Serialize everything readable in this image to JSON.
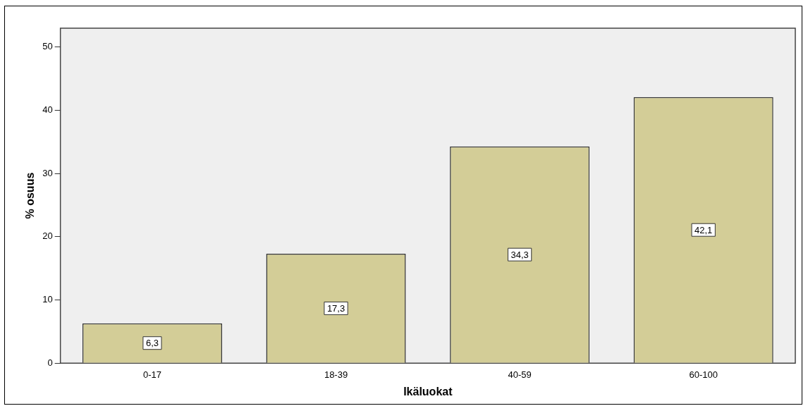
{
  "chart_data": {
    "type": "bar",
    "xlabel": "Ikäluokat",
    "ylabel": "% osuus",
    "categories": [
      "0-17",
      "18-39",
      "40-59",
      "60-100"
    ],
    "values": [
      6.3,
      17.3,
      34.3,
      42.1
    ],
    "value_labels": [
      "6,3",
      "17,3",
      "34,3",
      "42,1"
    ],
    "color": "#d3cd97",
    "ylim": [
      0,
      53
    ],
    "yticks": [
      0,
      10,
      20,
      30,
      40,
      50
    ],
    "grid": false,
    "legend": false
  }
}
